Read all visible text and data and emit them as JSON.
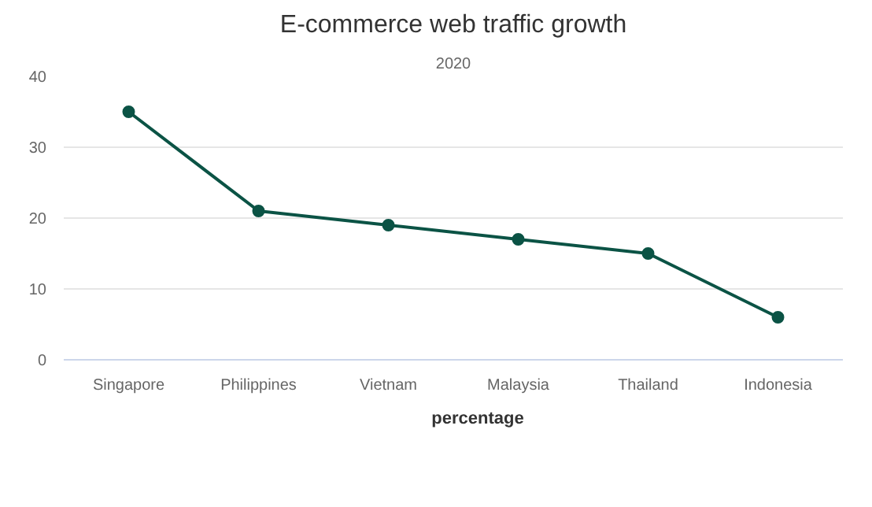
{
  "chart_data": {
    "type": "line",
    "title": "E-commerce web traffic growth",
    "subtitle": "2020",
    "categories": [
      "Singapore",
      "Philippines",
      "Vietnam",
      "Malaysia",
      "Thailand",
      "Indonesia"
    ],
    "series": [
      {
        "name": "percentage",
        "color": "#0b5345",
        "values": [
          35,
          21,
          19,
          17,
          15,
          6
        ]
      }
    ],
    "ylim": [
      0,
      40
    ],
    "yticks": [
      0,
      10,
      20,
      30,
      40
    ],
    "grid": "y",
    "legend": "bottom",
    "marker": "circle",
    "line_style": "solid"
  }
}
